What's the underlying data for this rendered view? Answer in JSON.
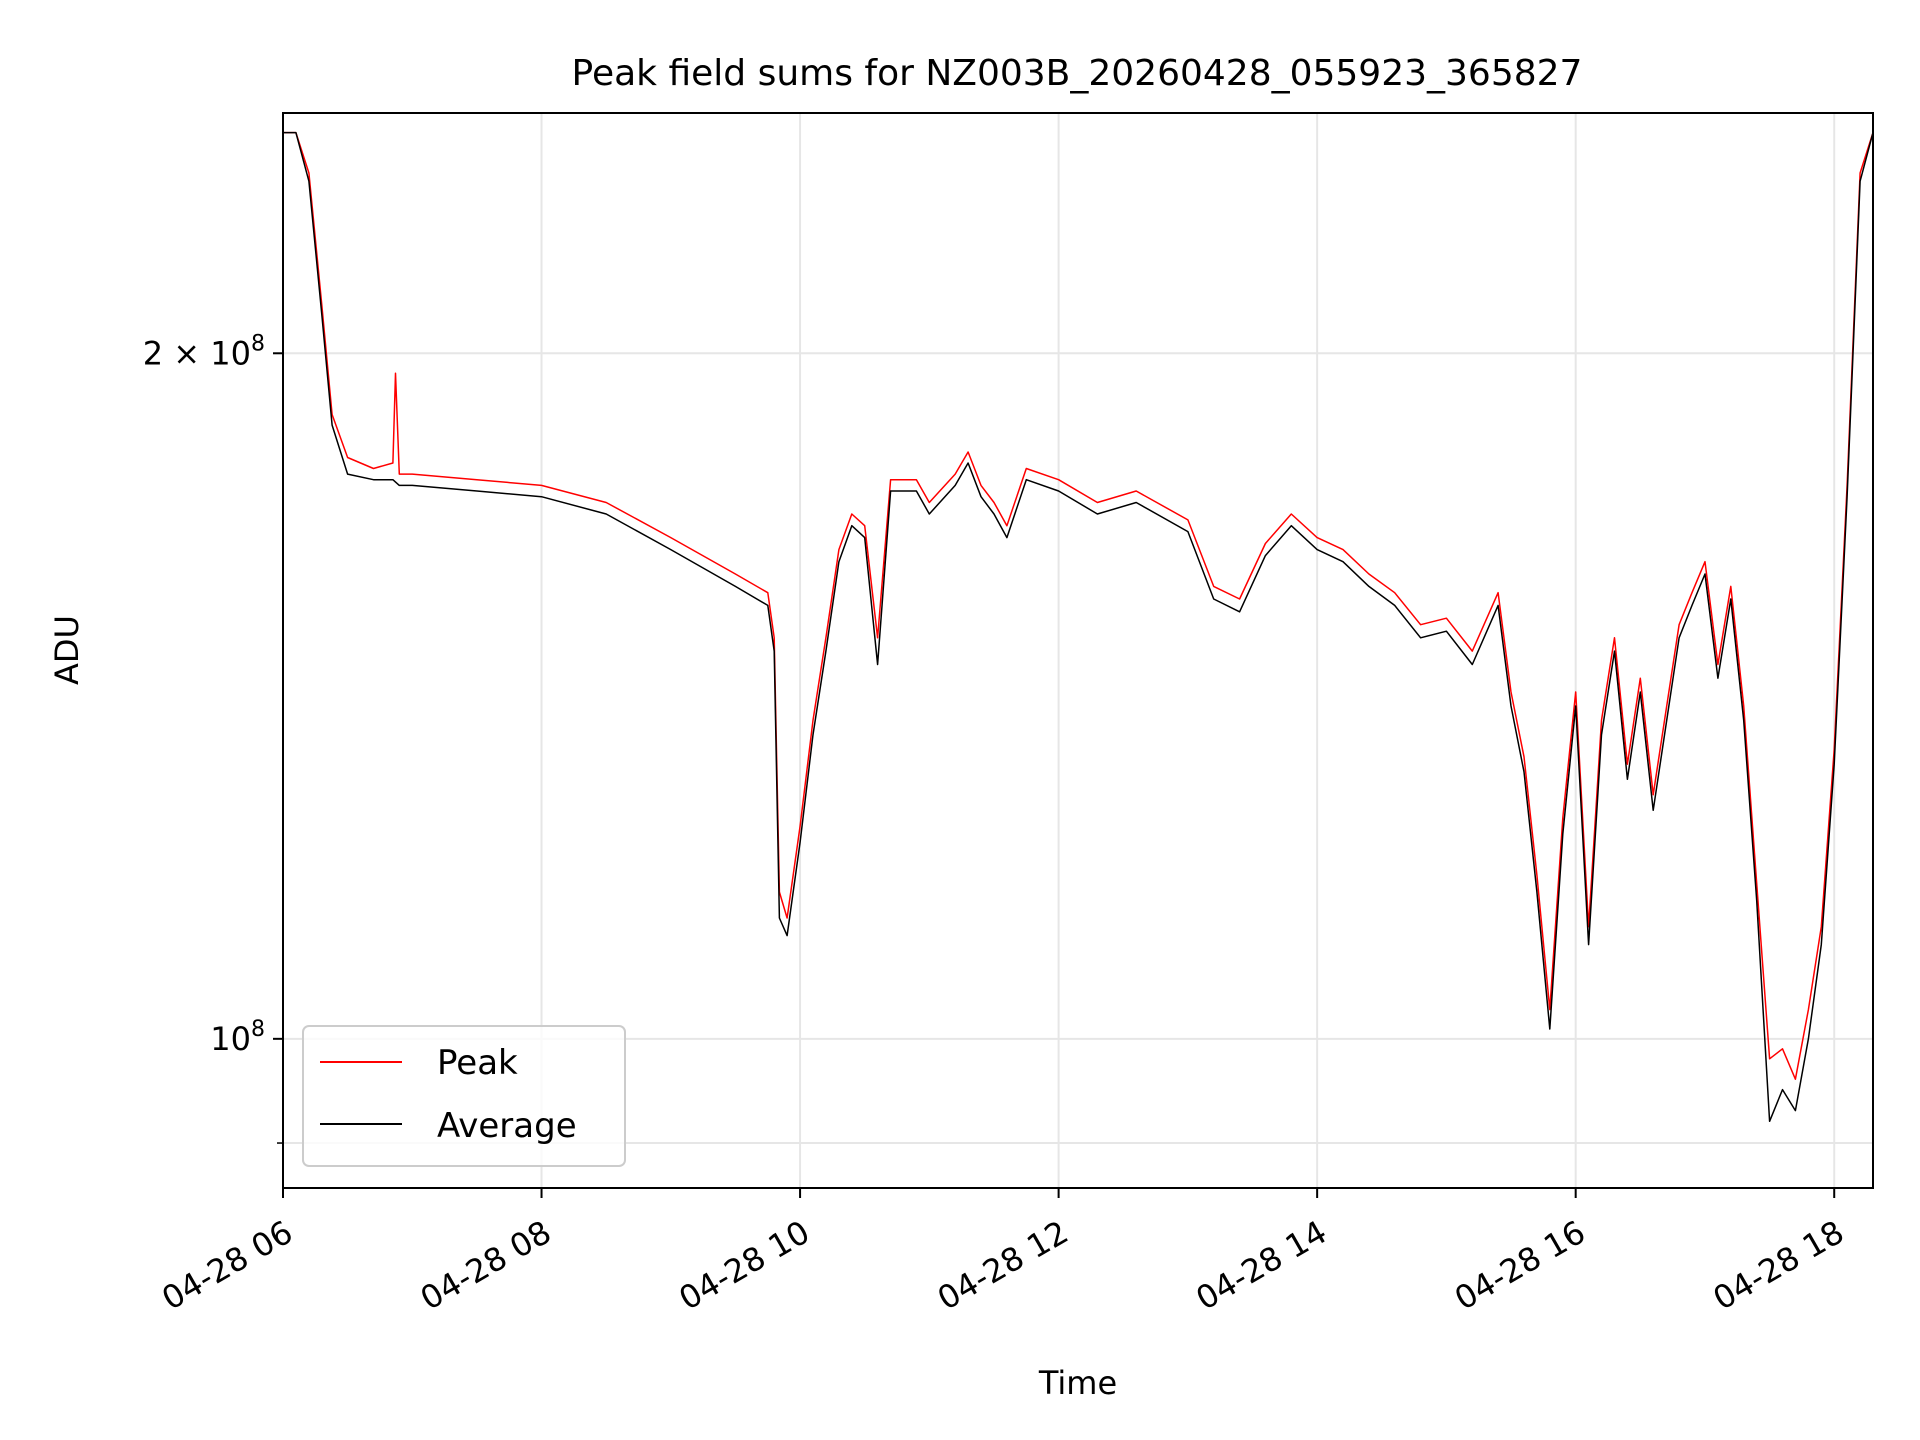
{
  "chart_data": {
    "type": "line",
    "title": "Peak field sums for NZ003B_20260428_055923_365827",
    "xlabel": "Time",
    "ylabel": "ADU",
    "x_unit": "hours (local time of day)",
    "xlim": [
      6.0,
      18.3
    ],
    "ylim": [
      86000000,
      255000000
    ],
    "y_scale": "log",
    "grid": true,
    "legend_position": "lower left",
    "x_ticks": [
      {
        "value": 6,
        "label": "04-28 06"
      },
      {
        "value": 8,
        "label": "04-28 08"
      },
      {
        "value": 10,
        "label": "04-28 10"
      },
      {
        "value": 12,
        "label": "04-28 12"
      },
      {
        "value": 14,
        "label": "04-28 14"
      },
      {
        "value": 16,
        "label": "04-28 16"
      },
      {
        "value": 18,
        "label": "04-28 18"
      }
    ],
    "y_ticks": [
      {
        "value": 100000000,
        "label_base": "10",
        "label_exp": "8",
        "label_mult": ""
      },
      {
        "value": 200000000,
        "label_base": "10",
        "label_exp": "8",
        "label_mult": "2 × "
      }
    ],
    "y_minor_ticks": [
      90000000
    ],
    "series": [
      {
        "name": "Peak",
        "color": "#ff0000",
        "points": [
          [
            6.0,
            250000000
          ],
          [
            6.1,
            250000000
          ],
          [
            6.2,
            240000000
          ],
          [
            6.3,
            210000000
          ],
          [
            6.38,
            188000000
          ],
          [
            6.5,
            180000000
          ],
          [
            6.7,
            178000000
          ],
          [
            6.85,
            179000000
          ],
          [
            6.87,
            196000000
          ],
          [
            6.9,
            177000000
          ],
          [
            7.0,
            177000000
          ],
          [
            7.5,
            176000000
          ],
          [
            8.0,
            175000000
          ],
          [
            8.5,
            172000000
          ],
          [
            9.0,
            166000000
          ],
          [
            9.5,
            160000000
          ],
          [
            9.75,
            157000000
          ],
          [
            9.8,
            150000000
          ],
          [
            9.84,
            116000000
          ],
          [
            9.9,
            113000000
          ],
          [
            10.0,
            124000000
          ],
          [
            10.1,
            138000000
          ],
          [
            10.2,
            150000000
          ],
          [
            10.3,
            164000000
          ],
          [
            10.4,
            170000000
          ],
          [
            10.5,
            168000000
          ],
          [
            10.6,
            150000000
          ],
          [
            10.7,
            176000000
          ],
          [
            10.9,
            176000000
          ],
          [
            11.0,
            172000000
          ],
          [
            11.2,
            177000000
          ],
          [
            11.3,
            181000000
          ],
          [
            11.4,
            175000000
          ],
          [
            11.5,
            172000000
          ],
          [
            11.6,
            168000000
          ],
          [
            11.75,
            178000000
          ],
          [
            12.0,
            176000000
          ],
          [
            12.3,
            172000000
          ],
          [
            12.6,
            174000000
          ],
          [
            13.0,
            169000000
          ],
          [
            13.2,
            158000000
          ],
          [
            13.4,
            156000000
          ],
          [
            13.6,
            165000000
          ],
          [
            13.8,
            170000000
          ],
          [
            14.0,
            166000000
          ],
          [
            14.2,
            164000000
          ],
          [
            14.4,
            160000000
          ],
          [
            14.6,
            157000000
          ],
          [
            14.8,
            152000000
          ],
          [
            15.0,
            153000000
          ],
          [
            15.2,
            148000000
          ],
          [
            15.4,
            157000000
          ],
          [
            15.5,
            142000000
          ],
          [
            15.6,
            133000000
          ],
          [
            15.7,
            118000000
          ],
          [
            15.8,
            103000000
          ],
          [
            15.9,
            125000000
          ],
          [
            16.0,
            142000000
          ],
          [
            16.1,
            112000000
          ],
          [
            16.2,
            138000000
          ],
          [
            16.3,
            150000000
          ],
          [
            16.4,
            132000000
          ],
          [
            16.5,
            144000000
          ],
          [
            16.6,
            128000000
          ],
          [
            16.8,
            152000000
          ],
          [
            16.9,
            157000000
          ],
          [
            17.0,
            162000000
          ],
          [
            17.1,
            146000000
          ],
          [
            17.2,
            158000000
          ],
          [
            17.3,
            140000000
          ],
          [
            17.4,
            117000000
          ],
          [
            17.5,
            98000000
          ],
          [
            17.6,
            99000000
          ],
          [
            17.7,
            96000000
          ],
          [
            17.8,
            103000000
          ],
          [
            17.9,
            112000000
          ],
          [
            18.0,
            134000000
          ],
          [
            18.1,
            175000000
          ],
          [
            18.2,
            240000000
          ],
          [
            18.3,
            250000000
          ]
        ]
      },
      {
        "name": "Average",
        "color": "#000000",
        "points": [
          [
            6.0,
            250000000
          ],
          [
            6.1,
            250000000
          ],
          [
            6.2,
            238000000
          ],
          [
            6.3,
            208000000
          ],
          [
            6.38,
            186000000
          ],
          [
            6.5,
            177000000
          ],
          [
            6.7,
            176000000
          ],
          [
            6.85,
            176000000
          ],
          [
            6.9,
            175000000
          ],
          [
            7.0,
            175000000
          ],
          [
            7.5,
            174000000
          ],
          [
            8.0,
            173000000
          ],
          [
            8.5,
            170000000
          ],
          [
            9.0,
            164000000
          ],
          [
            9.5,
            158000000
          ],
          [
            9.75,
            155000000
          ],
          [
            9.8,
            148000000
          ],
          [
            9.84,
            113000000
          ],
          [
            9.9,
            111000000
          ],
          [
            10.0,
            122000000
          ],
          [
            10.1,
            136000000
          ],
          [
            10.2,
            148000000
          ],
          [
            10.3,
            162000000
          ],
          [
            10.4,
            168000000
          ],
          [
            10.5,
            166000000
          ],
          [
            10.6,
            146000000
          ],
          [
            10.7,
            174000000
          ],
          [
            10.9,
            174000000
          ],
          [
            11.0,
            170000000
          ],
          [
            11.2,
            175000000
          ],
          [
            11.3,
            179000000
          ],
          [
            11.4,
            173000000
          ],
          [
            11.5,
            170000000
          ],
          [
            11.6,
            166000000
          ],
          [
            11.75,
            176000000
          ],
          [
            12.0,
            174000000
          ],
          [
            12.3,
            170000000
          ],
          [
            12.6,
            172000000
          ],
          [
            13.0,
            167000000
          ],
          [
            13.2,
            156000000
          ],
          [
            13.4,
            154000000
          ],
          [
            13.6,
            163000000
          ],
          [
            13.8,
            168000000
          ],
          [
            14.0,
            164000000
          ],
          [
            14.2,
            162000000
          ],
          [
            14.4,
            158000000
          ],
          [
            14.6,
            155000000
          ],
          [
            14.8,
            150000000
          ],
          [
            15.0,
            151000000
          ],
          [
            15.2,
            146000000
          ],
          [
            15.4,
            155000000
          ],
          [
            15.5,
            140000000
          ],
          [
            15.6,
            131000000
          ],
          [
            15.7,
            116000000
          ],
          [
            15.8,
            101000000
          ],
          [
            15.9,
            123000000
          ],
          [
            16.0,
            140000000
          ],
          [
            16.1,
            110000000
          ],
          [
            16.2,
            136000000
          ],
          [
            16.3,
            148000000
          ],
          [
            16.4,
            130000000
          ],
          [
            16.5,
            142000000
          ],
          [
            16.6,
            126000000
          ],
          [
            16.8,
            150000000
          ],
          [
            16.9,
            155000000
          ],
          [
            17.0,
            160000000
          ],
          [
            17.1,
            144000000
          ],
          [
            17.2,
            156000000
          ],
          [
            17.3,
            138000000
          ],
          [
            17.4,
            115000000
          ],
          [
            17.5,
            92000000
          ],
          [
            17.6,
            95000000
          ],
          [
            17.7,
            93000000
          ],
          [
            17.8,
            100000000
          ],
          [
            17.9,
            110000000
          ],
          [
            18.0,
            132000000
          ],
          [
            18.1,
            173000000
          ],
          [
            18.2,
            238000000
          ],
          [
            18.3,
            250000000
          ]
        ]
      }
    ]
  }
}
